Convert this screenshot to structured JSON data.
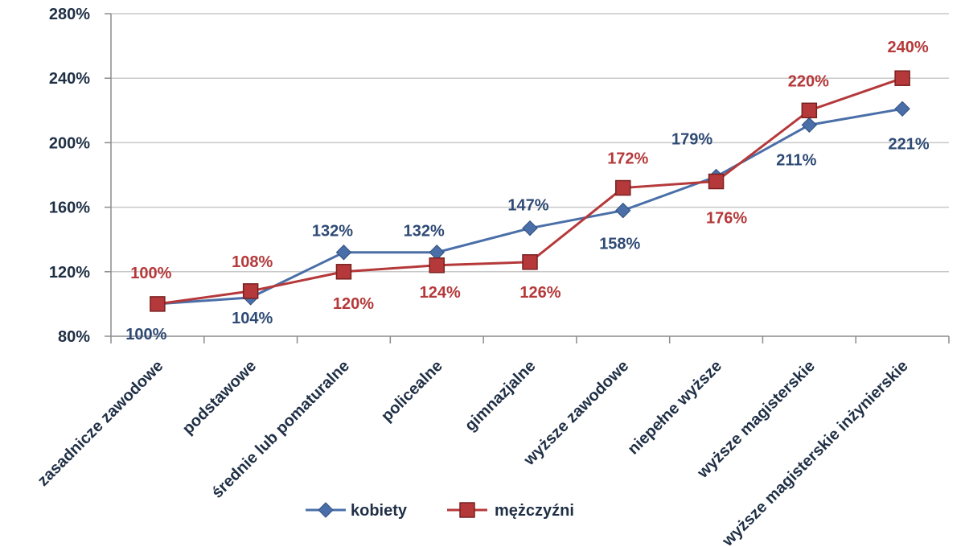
{
  "chart_data": {
    "type": "line",
    "title": "",
    "xlabel": "",
    "ylabel": "",
    "ylim": [
      80,
      280
    ],
    "yticks": [
      "80%",
      "120%",
      "160%",
      "200%",
      "240%",
      "280%"
    ],
    "ytick_values": [
      80,
      120,
      160,
      200,
      240,
      280
    ],
    "grid": true,
    "legend_position": "bottom",
    "categories": [
      "zasadnicze zawodowe",
      "podstawowe",
      "średnie lub pomaturalne",
      "policealne",
      "gimnazjalne",
      "wyższe zawodowe",
      "niepełne wyższe",
      "wyższe magisterskie",
      "wyższe magisterskie inżynierskie"
    ],
    "series": [
      {
        "name": "kobiety",
        "color": "#4a6fa8",
        "marker": "diamond",
        "values": [
          100,
          104,
          132,
          132,
          147,
          158,
          179,
          211,
          221
        ],
        "labels": [
          "100%",
          "104%",
          "132%",
          "132%",
          "147%",
          "158%",
          "179%",
          "211%",
          "221%"
        ]
      },
      {
        "name": "mężczyźni",
        "color": "#b5393a",
        "marker": "square",
        "values": [
          100,
          108,
          120,
          124,
          126,
          172,
          176,
          220,
          240
        ],
        "labels": [
          "100%",
          "108%",
          "120%",
          "124%",
          "126%",
          "172%",
          "176%",
          "220%",
          "240%"
        ]
      }
    ]
  }
}
